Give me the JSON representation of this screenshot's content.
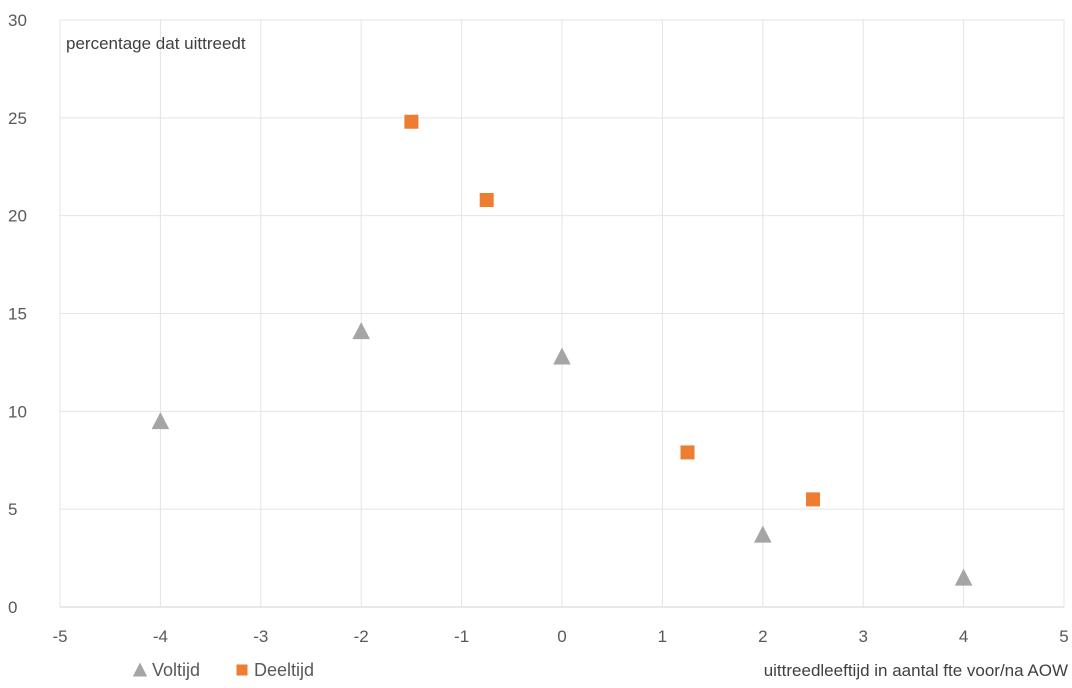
{
  "chart_data": {
    "type": "scatter",
    "y_axis_title": "percentage dat uittreedt",
    "x_axis_title": "uittreedleeftijd in aantal fte voor/na AOW",
    "xlim": [
      -5,
      5
    ],
    "ylim": [
      0,
      30
    ],
    "x_ticks": [
      -5,
      -4,
      -3,
      -2,
      -1,
      0,
      1,
      2,
      3,
      4,
      5
    ],
    "y_ticks": [
      0,
      5,
      10,
      15,
      20,
      25,
      30
    ],
    "grid": true,
    "legend_position": "bottom-left",
    "series": [
      {
        "name": "Voltijd",
        "marker": "triangle",
        "color": "#a5a5a5",
        "points": [
          {
            "x": -4,
            "y": 9.5
          },
          {
            "x": -2,
            "y": 14.1
          },
          {
            "x": 0,
            "y": 12.8
          },
          {
            "x": 2,
            "y": 3.7
          },
          {
            "x": 4,
            "y": 1.5
          }
        ]
      },
      {
        "name": "Deeltijd",
        "marker": "square",
        "color": "#ed7d31",
        "points": [
          {
            "x": -1.5,
            "y": 24.8
          },
          {
            "x": -0.75,
            "y": 20.8
          },
          {
            "x": 1.25,
            "y": 7.9
          },
          {
            "x": 2.5,
            "y": 5.5
          }
        ]
      }
    ]
  }
}
